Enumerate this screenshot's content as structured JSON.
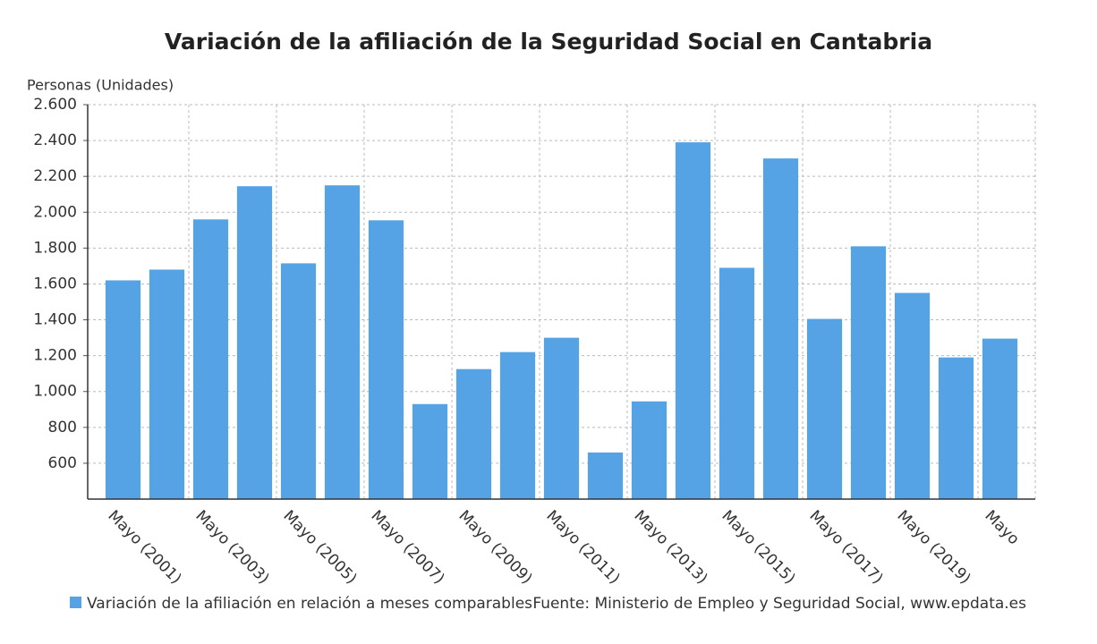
{
  "chart_data": {
    "type": "bar",
    "title": "Variación de la afiliación de la Seguridad Social en Cantabria",
    "y_label": "Personas (Unidades)",
    "source": "Fuente: Ministerio de Empleo y Seguridad Social, www.epdata.es",
    "categories": [
      "Mayo (2001)",
      null,
      "Mayo (2003)",
      null,
      "Mayo (2005)",
      null,
      "Mayo (2007)",
      null,
      "Mayo (2009)",
      null,
      "Mayo (2011)",
      null,
      "Mayo (2013)",
      null,
      "Mayo (2015)",
      null,
      "Mayo (2017)",
      null,
      "Mayo (2019)",
      null,
      "Mayo"
    ],
    "series": [
      {
        "name": "Variación de la afiliación en relación a meses comparables",
        "color": "#55a3e5",
        "values": [
          1620,
          1680,
          1960,
          2145,
          1715,
          2150,
          1955,
          930,
          1125,
          1220,
          1300,
          660,
          945,
          2390,
          1690,
          2300,
          1405,
          1810,
          1550,
          1190,
          1295
        ]
      }
    ],
    "ylim": [
      400,
      2600
    ],
    "yticks": [
      600,
      800,
      {
        "value": 1000,
        "label": "1.000"
      },
      {
        "value": 1200,
        "label": "1.200"
      },
      {
        "value": 1400,
        "label": "1.400"
      },
      {
        "value": 1600,
        "label": "1.600"
      },
      {
        "value": 1800,
        "label": "1.800"
      },
      {
        "value": 2000,
        "label": "2.000"
      },
      {
        "value": 2200,
        "label": "2.200"
      },
      {
        "value": 2400,
        "label": "2.400"
      },
      {
        "value": 2600,
        "label": "2.600"
      }
    ],
    "grid": true
  }
}
